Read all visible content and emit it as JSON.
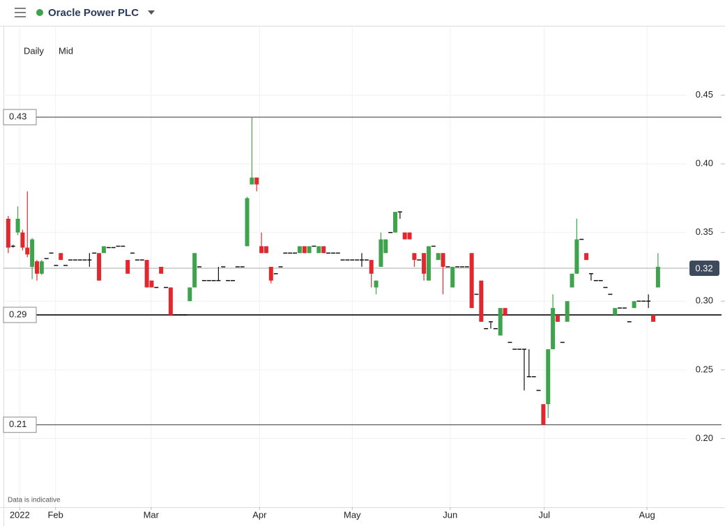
{
  "header": {
    "title": "Oracle Power PLC",
    "interval": "Daily",
    "price": "Mid"
  },
  "chart_data": {
    "type": "candlestick",
    "note": "Data is indicative",
    "up_color": "#3fa34d",
    "down_color": "#e0282e",
    "ylim": [
      0.15,
      0.5
    ],
    "yticks": [
      {
        "value": 0.2,
        "label": "0.20"
      },
      0.25,
      {
        "value": 0.3,
        "label": "0.30"
      },
      0.35,
      {
        "value": 0.4,
        "label": "0.40"
      },
      0.45
    ],
    "xlim": [
      -1,
      142
    ],
    "xticks": [
      {
        "value": 2.4,
        "label": "2022"
      },
      {
        "value": 9.9,
        "label": "Feb"
      },
      {
        "value": 29.9,
        "label": "Mar"
      },
      {
        "value": 52.6,
        "label": "Apr"
      },
      {
        "value": 72,
        "label": "May"
      },
      {
        "value": 92.5,
        "label": "Jun"
      },
      {
        "value": 112.2,
        "label": "Jul"
      },
      {
        "value": 133.7,
        "label": "Aug"
      }
    ],
    "levels": [
      {
        "value": 0.434,
        "label": "0.43"
      },
      {
        "value": 0.29,
        "label": "0.29"
      },
      {
        "value": 0.21,
        "label": "0.21"
      }
    ],
    "last": {
      "value": 0.324,
      "label": "0.32"
    },
    "candles": [
      [
        0.36,
        0.362,
        0.335,
        0.339
      ],
      [
        0.34,
        0.341,
        0.339,
        0.34
      ],
      [
        0.35,
        0.369,
        0.348,
        0.36
      ],
      [
        0.35,
        0.352,
        0.337,
        0.339
      ],
      [
        0.339,
        0.38,
        0.332,
        0.334
      ],
      [
        0.325,
        0.346,
        0.316,
        0.345
      ],
      [
        0.329,
        0.33,
        0.315,
        0.32
      ],
      [
        0.32,
        0.33,
        0.319,
        0.329
      ],
      [
        0.331,
        0.331,
        0.331,
        0.331
      ],
      [
        0.335,
        0.335,
        0.335,
        0.335
      ],
      [
        0.326,
        0.326,
        0.326,
        0.326
      ],
      [
        0.335,
        0.335,
        0.33,
        0.33
      ],
      [
        0.326,
        0.326,
        0.326,
        0.326
      ],
      [
        0.33,
        0.33,
        0.33,
        0.33
      ],
      [
        0.33,
        0.33,
        0.33,
        0.33
      ],
      [
        0.33,
        0.33,
        0.33,
        0.33
      ],
      [
        0.33,
        0.33,
        0.33,
        0.33
      ],
      [
        0.33,
        0.335,
        0.325,
        0.33
      ],
      [
        0.335,
        0.335,
        0.335,
        0.335
      ],
      [
        0.335,
        0.335,
        0.315,
        0.315
      ],
      [
        0.335,
        0.34,
        0.335,
        0.34
      ],
      [
        0.339,
        0.339,
        0.339,
        0.339
      ],
      [
        0.339,
        0.339,
        0.339,
        0.339
      ],
      [
        0.34,
        0.34,
        0.34,
        0.34
      ],
      [
        0.34,
        0.34,
        0.34,
        0.34
      ],
      [
        0.33,
        0.33,
        0.32,
        0.32
      ],
      [
        0.335,
        0.335,
        0.335,
        0.335
      ],
      [
        0.33,
        0.33,
        0.33,
        0.33
      ],
      [
        0.33,
        0.33,
        0.33,
        0.33
      ],
      [
        0.33,
        0.33,
        0.31,
        0.31
      ],
      [
        0.315,
        0.315,
        0.31,
        0.31
      ],
      [
        0.31,
        0.31,
        0.31,
        0.31
      ],
      [
        0.325,
        0.325,
        0.32,
        0.32
      ],
      [
        0.31,
        0.31,
        0.31,
        0.31
      ],
      [
        0.31,
        0.31,
        0.29,
        0.29
      ],
      [
        0.29,
        0.29,
        0.29,
        0.29
      ],
      [
        0.29,
        0.29,
        0.29,
        0.29
      ],
      [
        0.29,
        0.29,
        0.29,
        0.29
      ],
      [
        0.3,
        0.31,
        0.3,
        0.31
      ],
      [
        0.31,
        0.335,
        0.31,
        0.335
      ],
      [
        0.325,
        0.325,
        0.325,
        0.325
      ],
      [
        0.315,
        0.315,
        0.315,
        0.315
      ],
      [
        0.315,
        0.315,
        0.315,
        0.315
      ],
      [
        0.315,
        0.315,
        0.315,
        0.315
      ],
      [
        0.315,
        0.325,
        0.315,
        0.315
      ],
      [
        0.325,
        0.325,
        0.325,
        0.325
      ],
      [
        0.315,
        0.315,
        0.315,
        0.315
      ],
      [
        0.315,
        0.315,
        0.315,
        0.315
      ],
      [
        0.325,
        0.325,
        0.325,
        0.325
      ],
      [
        0.325,
        0.325,
        0.325,
        0.325
      ],
      [
        0.34,
        0.376,
        0.34,
        0.375
      ],
      [
        0.385,
        0.434,
        0.385,
        0.39
      ],
      [
        0.39,
        0.39,
        0.38,
        0.385
      ],
      [
        0.34,
        0.35,
        0.335,
        0.335
      ],
      [
        0.34,
        0.34,
        0.335,
        0.335
      ],
      [
        0.325,
        0.325,
        0.313,
        0.315
      ],
      [
        0.32,
        0.32,
        0.32,
        0.32
      ],
      [
        0.325,
        0.325,
        0.325,
        0.325
      ],
      [
        0.335,
        0.335,
        0.335,
        0.335
      ],
      [
        0.335,
        0.335,
        0.335,
        0.335
      ],
      [
        0.335,
        0.335,
        0.335,
        0.335
      ],
      [
        0.335,
        0.34,
        0.335,
        0.34
      ],
      [
        0.34,
        0.34,
        0.335,
        0.335
      ],
      [
        0.335,
        0.34,
        0.335,
        0.34
      ],
      [
        0.34,
        0.34,
        0.34,
        0.34
      ],
      [
        0.335,
        0.34,
        0.335,
        0.34
      ],
      [
        0.34,
        0.34,
        0.335,
        0.335
      ],
      [
        0.335,
        0.335,
        0.335,
        0.335
      ],
      [
        0.335,
        0.335,
        0.335,
        0.335
      ],
      [
        0.335,
        0.335,
        0.335,
        0.335
      ],
      [
        0.33,
        0.33,
        0.33,
        0.33
      ],
      [
        0.33,
        0.33,
        0.33,
        0.33
      ],
      [
        0.33,
        0.33,
        0.33,
        0.33
      ],
      [
        0.33,
        0.33,
        0.33,
        0.33
      ],
      [
        0.33,
        0.335,
        0.325,
        0.33
      ],
      [
        0.33,
        0.33,
        0.33,
        0.33
      ],
      [
        0.33,
        0.33,
        0.31,
        0.32
      ],
      [
        0.31,
        0.315,
        0.305,
        0.315
      ],
      [
        0.325,
        0.35,
        0.325,
        0.345
      ],
      [
        0.335,
        0.345,
        0.335,
        0.345
      ],
      [
        0.35,
        0.35,
        0.35,
        0.35
      ],
      [
        0.35,
        0.365,
        0.35,
        0.365
      ],
      [
        0.365,
        0.365,
        0.36,
        0.365
      ],
      [
        0.35,
        0.35,
        0.345,
        0.345
      ],
      [
        0.35,
        0.35,
        0.345,
        0.345
      ],
      [
        0.335,
        0.335,
        0.325,
        0.33
      ],
      [
        0.33,
        0.33,
        0.33,
        0.33
      ],
      [
        0.335,
        0.335,
        0.315,
        0.32
      ],
      [
        0.315,
        0.34,
        0.315,
        0.34
      ],
      [
        0.34,
        0.34,
        0.34,
        0.34
      ],
      [
        0.33,
        0.335,
        0.33,
        0.335
      ],
      [
        0.335,
        0.335,
        0.305,
        0.325
      ],
      [
        0.325,
        0.325,
        0.325,
        0.325
      ],
      [
        0.31,
        0.325,
        0.31,
        0.325
      ],
      [
        0.325,
        0.325,
        0.325,
        0.325
      ],
      [
        0.325,
        0.325,
        0.325,
        0.325
      ],
      [
        0.325,
        0.325,
        0.325,
        0.325
      ],
      [
        0.335,
        0.335,
        0.295,
        0.295
      ],
      [
        0.305,
        0.305,
        0.305,
        0.305
      ],
      [
        0.315,
        0.315,
        0.285,
        0.285
      ],
      [
        0.28,
        0.28,
        0.28,
        0.28
      ],
      [
        0.285,
        0.285,
        0.28,
        0.285
      ],
      [
        0.28,
        0.28,
        0.28,
        0.28
      ],
      [
        0.275,
        0.295,
        0.275,
        0.295
      ],
      [
        0.295,
        0.295,
        0.29,
        0.29
      ],
      [
        0.27,
        0.27,
        0.27,
        0.27
      ],
      [
        0.265,
        0.265,
        0.265,
        0.265
      ],
      [
        0.265,
        0.265,
        0.265,
        0.265
      ],
      [
        0.265,
        0.265,
        0.235,
        0.265
      ],
      [
        0.245,
        0.265,
        0.245,
        0.245
      ],
      [
        0.245,
        0.245,
        0.245,
        0.245
      ],
      [
        0.235,
        0.235,
        0.235,
        0.235
      ],
      [
        0.225,
        0.225,
        0.21,
        0.21
      ],
      [
        0.225,
        0.265,
        0.215,
        0.265
      ],
      [
        0.265,
        0.305,
        0.265,
        0.295
      ],
      [
        0.29,
        0.29,
        0.285,
        0.285
      ],
      [
        0.27,
        0.27,
        0.27,
        0.27
      ],
      [
        0.285,
        0.3,
        0.285,
        0.3
      ],
      [
        0.31,
        0.32,
        0.31,
        0.32
      ],
      [
        0.32,
        0.36,
        0.32,
        0.345
      ],
      [
        0.345,
        0.345,
        0.345,
        0.345
      ],
      [
        0.335,
        0.335,
        0.33,
        0.33
      ],
      [
        0.32,
        0.32,
        0.315,
        0.32
      ],
      [
        0.315,
        0.315,
        0.315,
        0.315
      ],
      [
        0.315,
        0.315,
        0.315,
        0.315
      ],
      [
        0.31,
        0.31,
        0.31,
        0.31
      ],
      [
        0.305,
        0.305,
        0.305,
        0.305
      ],
      [
        0.29,
        0.295,
        0.29,
        0.295
      ],
      [
        0.295,
        0.295,
        0.295,
        0.295
      ],
      [
        0.295,
        0.295,
        0.295,
        0.295
      ],
      [
        0.285,
        0.285,
        0.285,
        0.285
      ],
      [
        0.295,
        0.3,
        0.295,
        0.3
      ],
      [
        0.3,
        0.3,
        0.3,
        0.3
      ],
      [
        0.3,
        0.3,
        0.3,
        0.3
      ],
      [
        0.3,
        0.305,
        0.295,
        0.3
      ],
      [
        0.29,
        0.29,
        0.285,
        0.285
      ],
      [
        0.31,
        0.335,
        0.31,
        0.325
      ]
    ]
  }
}
